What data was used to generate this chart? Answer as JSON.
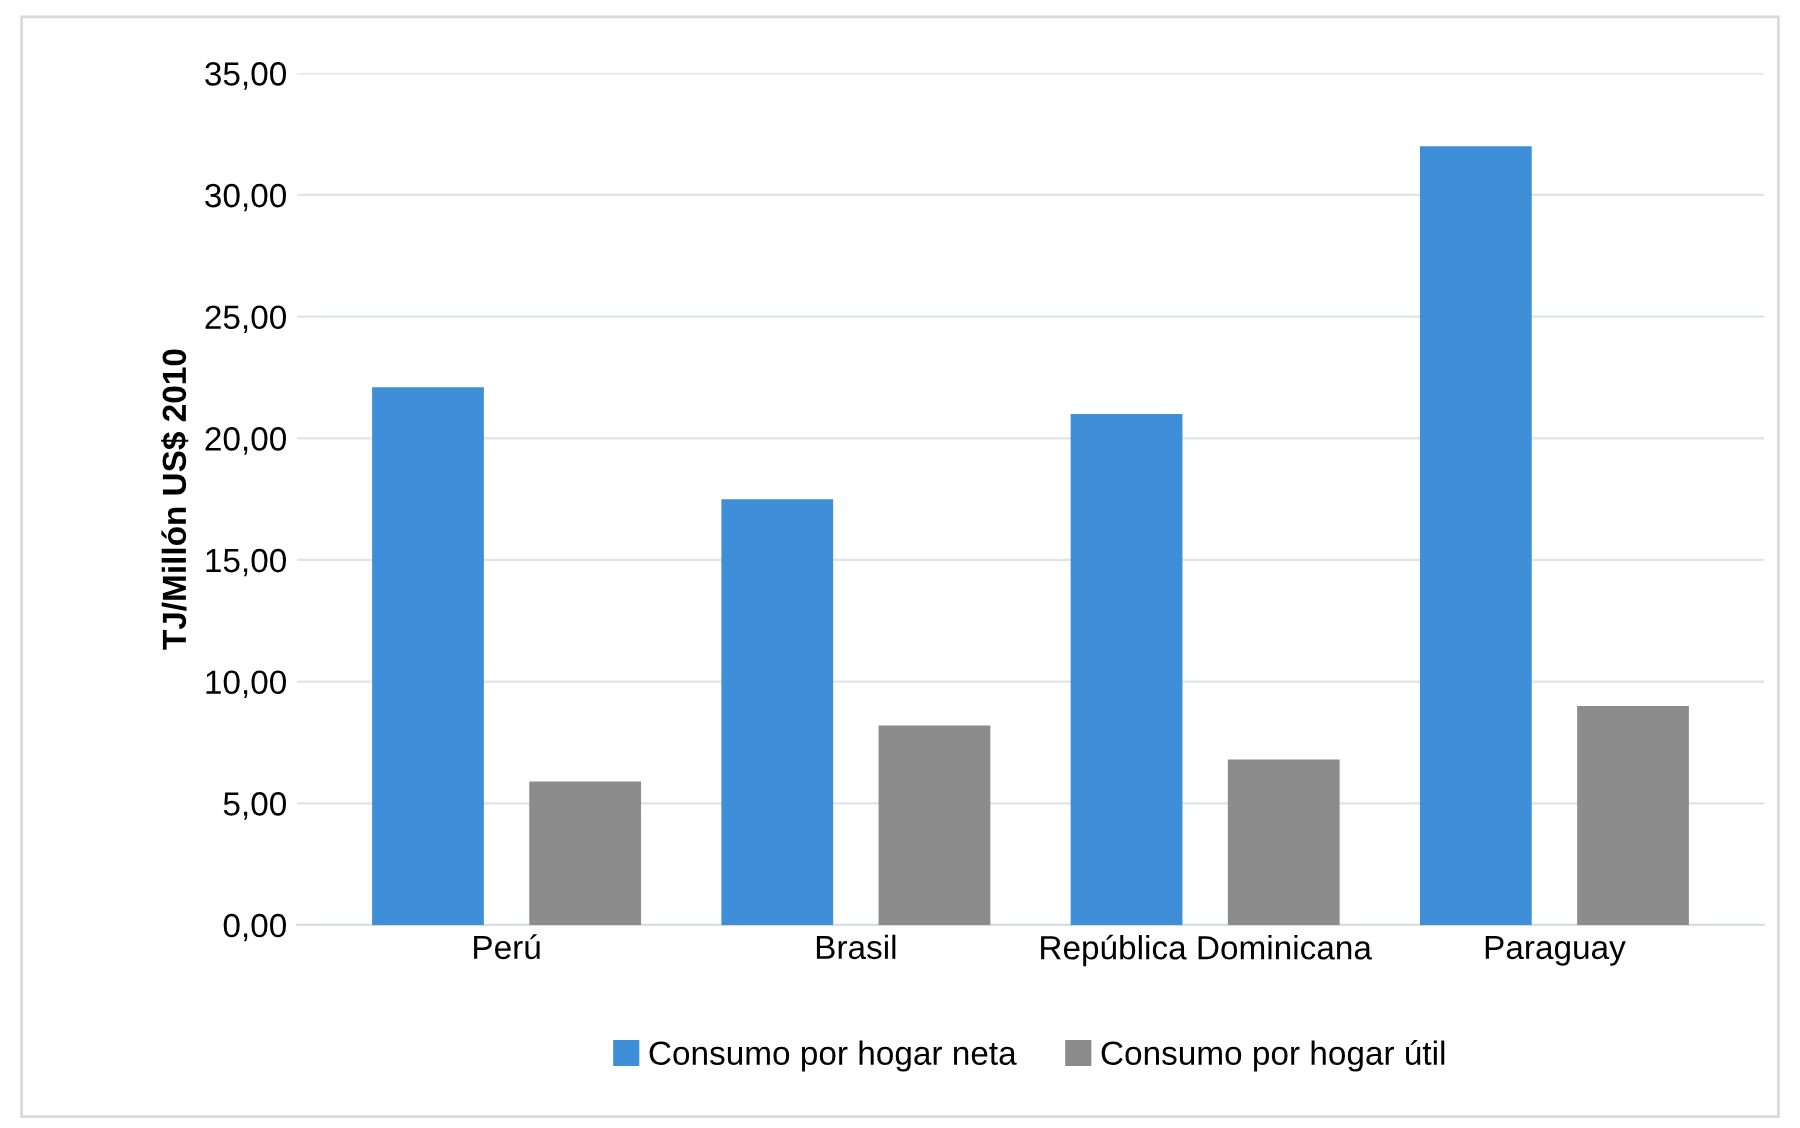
{
  "chart_data": {
    "type": "bar",
    "ylabel": "TJ/Millón US$ 2010",
    "categories": [
      "Perú",
      "Brasil",
      "República Dominicana",
      "Paraguay"
    ],
    "series": [
      {
        "name": "Consumo por hogar neta",
        "color": "#3f8fd8",
        "values": [
          22.1,
          17.5,
          21.0,
          32.0
        ]
      },
      {
        "name": "Consumo por hogar útil",
        "color": "#8c8c8c",
        "values": [
          5.9,
          8.2,
          6.8,
          9.0
        ]
      }
    ],
    "ylim": [
      0,
      35
    ],
    "yticks": [
      {
        "value": 0,
        "label": "0,00"
      },
      {
        "value": 5,
        "label": "5,00"
      },
      {
        "value": 10,
        "label": "10,00"
      },
      {
        "value": 15,
        "label": "15,00"
      },
      {
        "value": 20,
        "label": "20,00"
      },
      {
        "value": 25,
        "label": "25,00"
      },
      {
        "value": 30,
        "label": "30,00"
      },
      {
        "value": 35,
        "label": "35,00"
      }
    ],
    "grid": "y",
    "legend": "bottom"
  }
}
